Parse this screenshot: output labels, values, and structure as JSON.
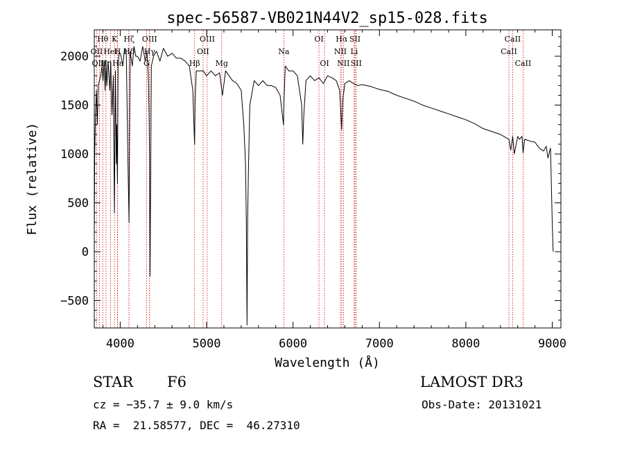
{
  "chart_data": {
    "type": "line",
    "title": "spec-56587-VB021N44V2_sp15-028.fits",
    "xlabel": "Wavelength (Å)",
    "ylabel": "Flux (relative)",
    "xlim": [
      3700,
      9100
    ],
    "ylim": [
      -780,
      2270
    ],
    "xticks": [
      4000,
      5000,
      6000,
      7000,
      8000,
      9000
    ],
    "yticks": [
      -500,
      0,
      500,
      1000,
      1500,
      2000
    ],
    "grid": false,
    "series": [
      {
        "x": [
          3700,
          3705,
          3715,
          3725,
          3735,
          3745,
          3760,
          3775,
          3790,
          3800,
          3815,
          3825,
          3835,
          3845,
          3860,
          3880,
          3890,
          3905,
          3920,
          3933,
          3945,
          3955,
          3960,
          3968,
          3975,
          3990,
          4010,
          4030,
          4050,
          4070,
          4090,
          4102,
          4115,
          4140,
          4160,
          4180,
          4200,
          4230,
          4260,
          4290,
          4310,
          4325,
          4335,
          4340,
          4345,
          4360,
          4385,
          4420,
          4460,
          4500,
          4550,
          4600,
          4650,
          4700,
          4750,
          4800,
          4840,
          4855,
          4861,
          4867,
          4880,
          4920,
          4960,
          5000,
          5050,
          5100,
          5150,
          5183,
          5220,
          5260,
          5300,
          5350,
          5400,
          5430,
          5450,
          5460,
          5468,
          5475,
          5485,
          5500,
          5550,
          5600,
          5650,
          5700,
          5750,
          5800,
          5850,
          5890,
          5895,
          5910,
          5950,
          6000,
          6050,
          6100,
          6113,
          6125,
          6150,
          6200,
          6250,
          6300,
          6350,
          6400,
          6450,
          6500,
          6540,
          6563,
          6575,
          6600,
          6650,
          6700,
          6750,
          6800,
          6900,
          7000,
          7100,
          7200,
          7300,
          7400,
          7500,
          7600,
          7700,
          7800,
          7900,
          8000,
          8100,
          8200,
          8300,
          8400,
          8498,
          8520,
          8542,
          8560,
          8600,
          8620,
          8650,
          8662,
          8680,
          8750,
          8800,
          8850,
          8900,
          8930,
          8950,
          8980,
          9000,
          9010
        ],
        "y": [
          150,
          1000,
          1450,
          1650,
          1300,
          1700,
          1750,
          1800,
          1900,
          1750,
          1950,
          1650,
          1950,
          1700,
          1950,
          1650,
          1950,
          1400,
          1800,
          400,
          1850,
          900,
          1300,
          700,
          1900,
          2050,
          2000,
          1900,
          2080,
          2060,
          900,
          300,
          2050,
          1900,
          2100,
          2000,
          2000,
          1950,
          2100,
          1950,
          2050,
          1800,
          1400,
          900,
          -250,
          1900,
          2000,
          2050,
          1950,
          2080,
          2000,
          2030,
          1980,
          1980,
          1950,
          1900,
          1650,
          1250,
          1100,
          1550,
          1850,
          1850,
          1850,
          1800,
          1850,
          1800,
          1830,
          1600,
          1850,
          1800,
          1750,
          1720,
          1650,
          1300,
          900,
          300,
          -750,
          350,
          900,
          1500,
          1750,
          1700,
          1750,
          1700,
          1700,
          1680,
          1600,
          1300,
          1550,
          1900,
          1850,
          1850,
          1800,
          1500,
          1100,
          1400,
          1750,
          1800,
          1750,
          1780,
          1720,
          1800,
          1780,
          1750,
          1650,
          1250,
          1550,
          1720,
          1750,
          1720,
          1700,
          1710,
          1690,
          1660,
          1640,
          1600,
          1570,
          1540,
          1500,
          1470,
          1440,
          1410,
          1380,
          1350,
          1310,
          1260,
          1230,
          1200,
          1150,
          1040,
          1180,
          1000,
          1180,
          1150,
          1180,
          1010,
          1150,
          1130,
          1120,
          1060,
          1030,
          1080,
          960,
          1060,
          300,
          0
        ]
      }
    ],
    "lines": [
      {
        "name": "Hθ",
        "x": 3798,
        "row": 0
      },
      {
        "name": "OII",
        "x": 3727,
        "row": 1
      },
      {
        "name": "OIII",
        "x": 3760,
        "row": 2
      },
      {
        "name": "Hη",
        "x": 3835,
        "row": 2
      },
      {
        "name": "HeI",
        "x": 3889,
        "row": 1
      },
      {
        "name": "K",
        "x": 3934,
        "row": 0
      },
      {
        "name": "Hε",
        "x": 3970,
        "row": 2
      },
      {
        "name": "H",
        "x": 3968,
        "row": 1
      },
      {
        "name": "Hζ",
        "x": 4102,
        "row": 0
      },
      {
        "name": "Hδ",
        "x": 4102,
        "row": 1
      },
      {
        "name": "OIII",
        "x": 4340,
        "row": 0
      },
      {
        "name": "Hγ",
        "x": 4340,
        "row": 1
      },
      {
        "name": "G",
        "x": 4305,
        "row": 2
      },
      {
        "name": "OIII",
        "x": 5007,
        "row": 0
      },
      {
        "name": "OII",
        "x": 4959,
        "row": 1
      },
      {
        "name": "Hβ",
        "x": 4861,
        "row": 2
      },
      {
        "name": "Mg",
        "x": 5175,
        "row": 2
      },
      {
        "name": "Na",
        "x": 5893,
        "row": 1
      },
      {
        "name": "OI",
        "x": 6300,
        "row": 0
      },
      {
        "name": "OI",
        "x": 6364,
        "row": 2
      },
      {
        "name": "Hα",
        "x": 6563,
        "row": 0
      },
      {
        "name": "SII",
        "x": 6717,
        "row": 0
      },
      {
        "name": "NII",
        "x": 6548,
        "row": 1
      },
      {
        "name": "Li",
        "x": 6708,
        "row": 1
      },
      {
        "name": "NII",
        "x": 6583,
        "row": 2
      },
      {
        "name": "SII",
        "x": 6731,
        "row": 2
      },
      {
        "name": "CaII",
        "x": 8542,
        "row": 0
      },
      {
        "name": "CaII",
        "x": 8498,
        "row": 1
      },
      {
        "name": "CaII",
        "x": 8662,
        "row": 2
      }
    ]
  },
  "info": {
    "object_class": "STAR",
    "subclass": "F6",
    "survey": "LAMOST DR3",
    "cz": "cz = −35.7 ± 9.0 km/s",
    "obs_date": "Obs-Date: 20131021",
    "coords": "RA =  21.58577, DEC =  46.27310"
  },
  "colors": {
    "spectrum": "#000000",
    "line_markers": "#cc0000",
    "axes": "#000000"
  }
}
